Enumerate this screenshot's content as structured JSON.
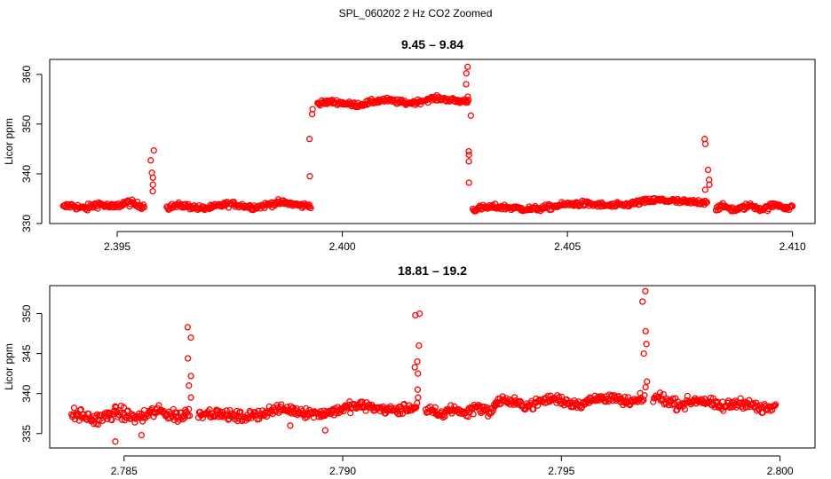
{
  "title": "SPL_060202 2 Hz CO2 Zoomed",
  "chart_data": [
    {
      "type": "scatter",
      "title": "9.45 – 9.84",
      "xlabel": "",
      "ylabel": "Licor ppm",
      "xlim": [
        2.3935,
        2.4105
      ],
      "ylim": [
        330,
        363
      ],
      "xticks": [
        2.395,
        2.4,
        2.405,
        2.41
      ],
      "xtick_labels": [
        "2.395",
        "2.400",
        "2.405",
        "2.410"
      ],
      "yticks": [
        330,
        340,
        350,
        360
      ],
      "ytick_labels": [
        "330",
        "340",
        "350",
        "360"
      ],
      "grid": false,
      "marker": "open-circle",
      "color": "#ff0000",
      "segments": [
        {
          "x_start": 2.3938,
          "x_end": 2.3956,
          "y_start": 333.2,
          "y_end": 334.0,
          "spread": 1.2
        },
        {
          "x_start": 2.3961,
          "x_end": 2.3993,
          "y_start": 333.2,
          "y_end": 334.0,
          "spread": 1.0
        },
        {
          "x_start": 2.39945,
          "x_end": 2.4028,
          "y_start": 354.0,
          "y_end": 355.0,
          "spread": 0.9
        },
        {
          "x_start": 2.4029,
          "x_end": 2.4081,
          "y_start": 332.8,
          "y_end": 334.7,
          "spread": 1.0
        },
        {
          "x_start": 2.4083,
          "x_end": 2.41,
          "y_start": 333.0,
          "y_end": 333.5,
          "spread": 1.0
        }
      ],
      "spikes": [
        {
          "x": 2.3958,
          "y": [
            336.5,
            337.8,
            339.2,
            340.2,
            342.7,
            344.7
          ]
        },
        {
          "x": 2.3993,
          "y": [
            339.5,
            347.0,
            352.0,
            353.0
          ]
        },
        {
          "x": 2.4028,
          "y": [
            351.7,
            355.5,
            358.0,
            360.2,
            361.5,
            344.5,
            343.8,
            342.5,
            338.2
          ]
        },
        {
          "x": 2.4081,
          "y": [
            336.8,
            337.8,
            338.8,
            340.8,
            346.0,
            347.0
          ]
        }
      ]
    },
    {
      "type": "scatter",
      "title": "18.81 – 19.2",
      "xlabel": "",
      "ylabel": "Licor ppm",
      "xlim": [
        2.7833,
        2.8008
      ],
      "ylim": [
        333.2,
        353.5
      ],
      "xticks": [
        2.785,
        2.79,
        2.795,
        2.8
      ],
      "xtick_labels": [
        "2.785",
        "2.790",
        "2.795",
        "2.800"
      ],
      "yticks": [
        335,
        340,
        345,
        350
      ],
      "ytick_labels": [
        "335",
        "340",
        "345",
        "350"
      ],
      "grid": false,
      "marker": "open-circle",
      "color": "#ff0000",
      "segments": [
        {
          "x_start": 2.7838,
          "x_end": 2.7865,
          "y_start": 337.0,
          "y_end": 337.6,
          "spread": 1.4
        },
        {
          "x_start": 2.7867,
          "x_end": 2.7917,
          "y_start": 337.2,
          "y_end": 338.4,
          "spread": 1.1
        },
        {
          "x_start": 2.7919,
          "x_end": 2.7935,
          "y_start": 337.5,
          "y_end": 338.2,
          "spread": 1.1
        },
        {
          "x_start": 2.7935,
          "x_end": 2.7969,
          "y_start": 338.8,
          "y_end": 339.3,
          "spread": 1.1
        },
        {
          "x_start": 2.7971,
          "x_end": 2.7999,
          "y_start": 339.2,
          "y_end": 338.3,
          "spread": 1.1
        }
      ],
      "spikes": [
        {
          "x": 2.7865,
          "y": [
            339.5,
            341.0,
            342.2,
            344.4,
            347.0,
            348.3
          ]
        },
        {
          "x": 2.7917,
          "y": [
            339.5,
            340.5,
            342.5,
            343.3,
            344.0,
            346.0,
            349.8,
            350.0
          ]
        },
        {
          "x": 2.7969,
          "y": [
            340.8,
            341.5,
            345.0,
            346.2,
            347.8,
            351.5,
            352.8
          ]
        }
      ],
      "dips": [
        {
          "x": 2.7848,
          "y": 334.0
        },
        {
          "x": 2.7854,
          "y": 334.8
        },
        {
          "x": 2.7888,
          "y": 336.0
        },
        {
          "x": 2.7896,
          "y": 335.4
        }
      ]
    }
  ]
}
